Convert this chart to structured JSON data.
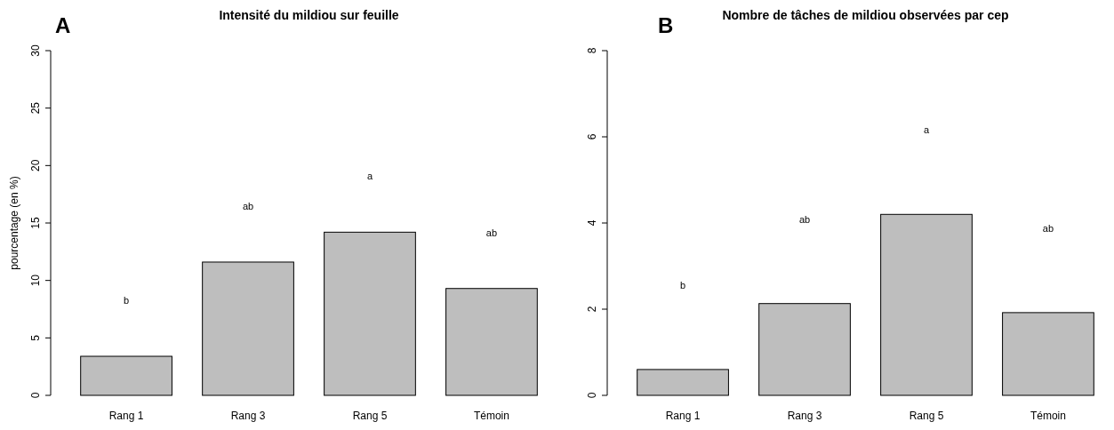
{
  "chart_data": [
    {
      "type": "bar",
      "title": "Intensité du mildiou sur feuille",
      "ylabel": "pourcentage (en %)",
      "categories": [
        "Rang 1",
        "Rang 3",
        "Rang 5",
        "Témoin"
      ],
      "values": [
        3.4,
        11.6,
        14.2,
        9.3
      ],
      "color": "#bebebe",
      "ylim": [
        0,
        30
      ],
      "yticks": [
        0,
        5,
        10,
        15,
        20,
        25,
        30
      ],
      "grid": false,
      "annotations": [
        "A",
        "b",
        "ab",
        "a",
        "ab"
      ]
    },
    {
      "type": "bar",
      "title": "Nombre de tâches de mildiou observées par cep",
      "categories": [
        "Rang 1",
        "Rang 3",
        "Rang 5",
        "Témoin"
      ],
      "values": [
        0.6,
        2.13,
        4.2,
        1.92
      ],
      "color": "#bebebe",
      "ylim": [
        0,
        8
      ],
      "yticks": [
        0,
        2,
        4,
        6,
        8
      ],
      "grid": false,
      "annotations": [
        "B",
        "b",
        "ab",
        "a",
        "ab"
      ]
    }
  ]
}
